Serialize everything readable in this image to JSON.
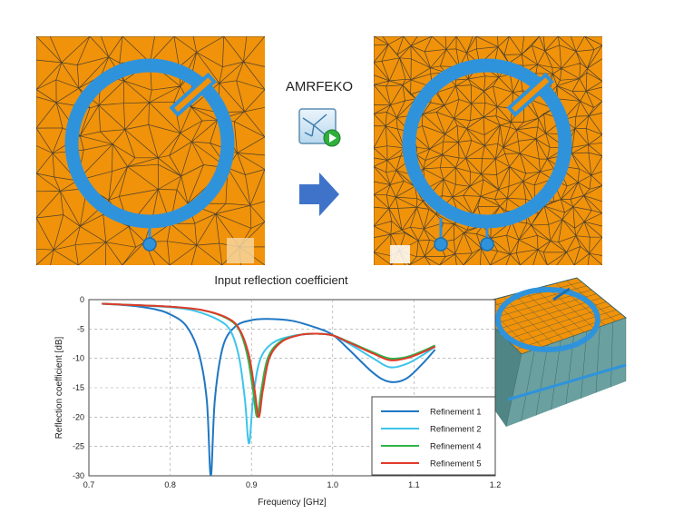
{
  "header": {
    "app_label": "AMRFEKO",
    "app_icon": "amrfeko-run-icon",
    "arrow_icon": "arrow-right-icon"
  },
  "colors": {
    "substrate": "#f0920a",
    "ring": "#2f93dc",
    "ring_dark": "#1b6fb0",
    "mesh": "#333333",
    "box_side": "#5e8f8f",
    "arrow": "#3f73c9"
  },
  "meshes": [
    {
      "label": "initial-mesh"
    },
    {
      "label": "refined-mesh"
    }
  ],
  "chart_data": {
    "type": "line",
    "title": "Input reflection coefficient",
    "xlabel": "Frequency [GHz]",
    "ylabel": "Reflection coefficient [dB]",
    "xlim": [
      0.7,
      1.2
    ],
    "ylim": [
      -30,
      0
    ],
    "xticks": [
      "0.7",
      "0.8",
      "0.9",
      "1.0",
      "1.1",
      "1.2"
    ],
    "yticks": [
      "0",
      "-5",
      "-10",
      "-15",
      "-20",
      "-25",
      "-30"
    ],
    "xtick_values": [
      0.7,
      0.8,
      0.9,
      1.0,
      1.1,
      1.2
    ],
    "ytick_values": [
      0,
      -5,
      -10,
      -15,
      -20,
      -25,
      -30
    ],
    "grid": true,
    "legend_position": "bottom-right",
    "series": [
      {
        "name": "Refinement 1",
        "color": "#1f77c4",
        "x": [
          0.716,
          0.75,
          0.78,
          0.8,
          0.82,
          0.835,
          0.845,
          0.85,
          0.855,
          0.865,
          0.88,
          0.9,
          0.92,
          0.95,
          0.98,
          1.0,
          1.02,
          1.05,
          1.07,
          1.09,
          1.11,
          1.126
        ],
        "y": [
          -0.7,
          -1.0,
          -1.6,
          -2.5,
          -4.5,
          -9.0,
          -17.0,
          -30.0,
          -17.0,
          -8.0,
          -4.6,
          -3.5,
          -3.3,
          -3.6,
          -4.8,
          -6.0,
          -8.5,
          -12.5,
          -14.0,
          -13.5,
          -11.0,
          -8.5
        ]
      },
      {
        "name": "Refinement 2",
        "color": "#3cc4ec",
        "x": [
          0.716,
          0.75,
          0.8,
          0.83,
          0.86,
          0.875,
          0.885,
          0.892,
          0.897,
          0.902,
          0.91,
          0.925,
          0.95,
          0.98,
          1.0,
          1.02,
          1.05,
          1.07,
          1.09,
          1.11,
          1.126
        ],
        "y": [
          -0.7,
          -0.9,
          -1.3,
          -1.9,
          -3.5,
          -5.5,
          -10.0,
          -17.0,
          -24.5,
          -17.0,
          -10.5,
          -7.5,
          -6.2,
          -5.8,
          -6.1,
          -7.5,
          -10.0,
          -11.5,
          -11.0,
          -9.5,
          -8.0
        ]
      },
      {
        "name": "Refinement 4",
        "color": "#2eb34a",
        "x": [
          0.716,
          0.75,
          0.8,
          0.84,
          0.87,
          0.885,
          0.895,
          0.902,
          0.907,
          0.912,
          0.92,
          0.935,
          0.96,
          0.98,
          1.0,
          1.02,
          1.05,
          1.07,
          1.09,
          1.11,
          1.126
        ],
        "y": [
          -0.7,
          -0.9,
          -1.2,
          -1.8,
          -3.2,
          -5.2,
          -9.5,
          -15.5,
          -20.0,
          -15.5,
          -10.0,
          -7.2,
          -6.0,
          -5.8,
          -6.1,
          -7.2,
          -9.0,
          -10.0,
          -9.8,
          -8.8,
          -7.8
        ]
      },
      {
        "name": "Refinement 5",
        "color": "#e03a2a",
        "x": [
          0.716,
          0.75,
          0.8,
          0.84,
          0.87,
          0.885,
          0.897,
          0.904,
          0.909,
          0.914,
          0.922,
          0.937,
          0.96,
          0.98,
          1.0,
          1.02,
          1.05,
          1.07,
          1.09,
          1.11,
          1.126
        ],
        "y": [
          -0.7,
          -0.9,
          -1.2,
          -1.8,
          -3.1,
          -5.0,
          -9.5,
          -15.5,
          -20.0,
          -15.5,
          -10.0,
          -7.2,
          -6.0,
          -5.8,
          -6.1,
          -7.3,
          -9.2,
          -10.3,
          -10.0,
          -9.0,
          -8.0
        ]
      }
    ]
  }
}
